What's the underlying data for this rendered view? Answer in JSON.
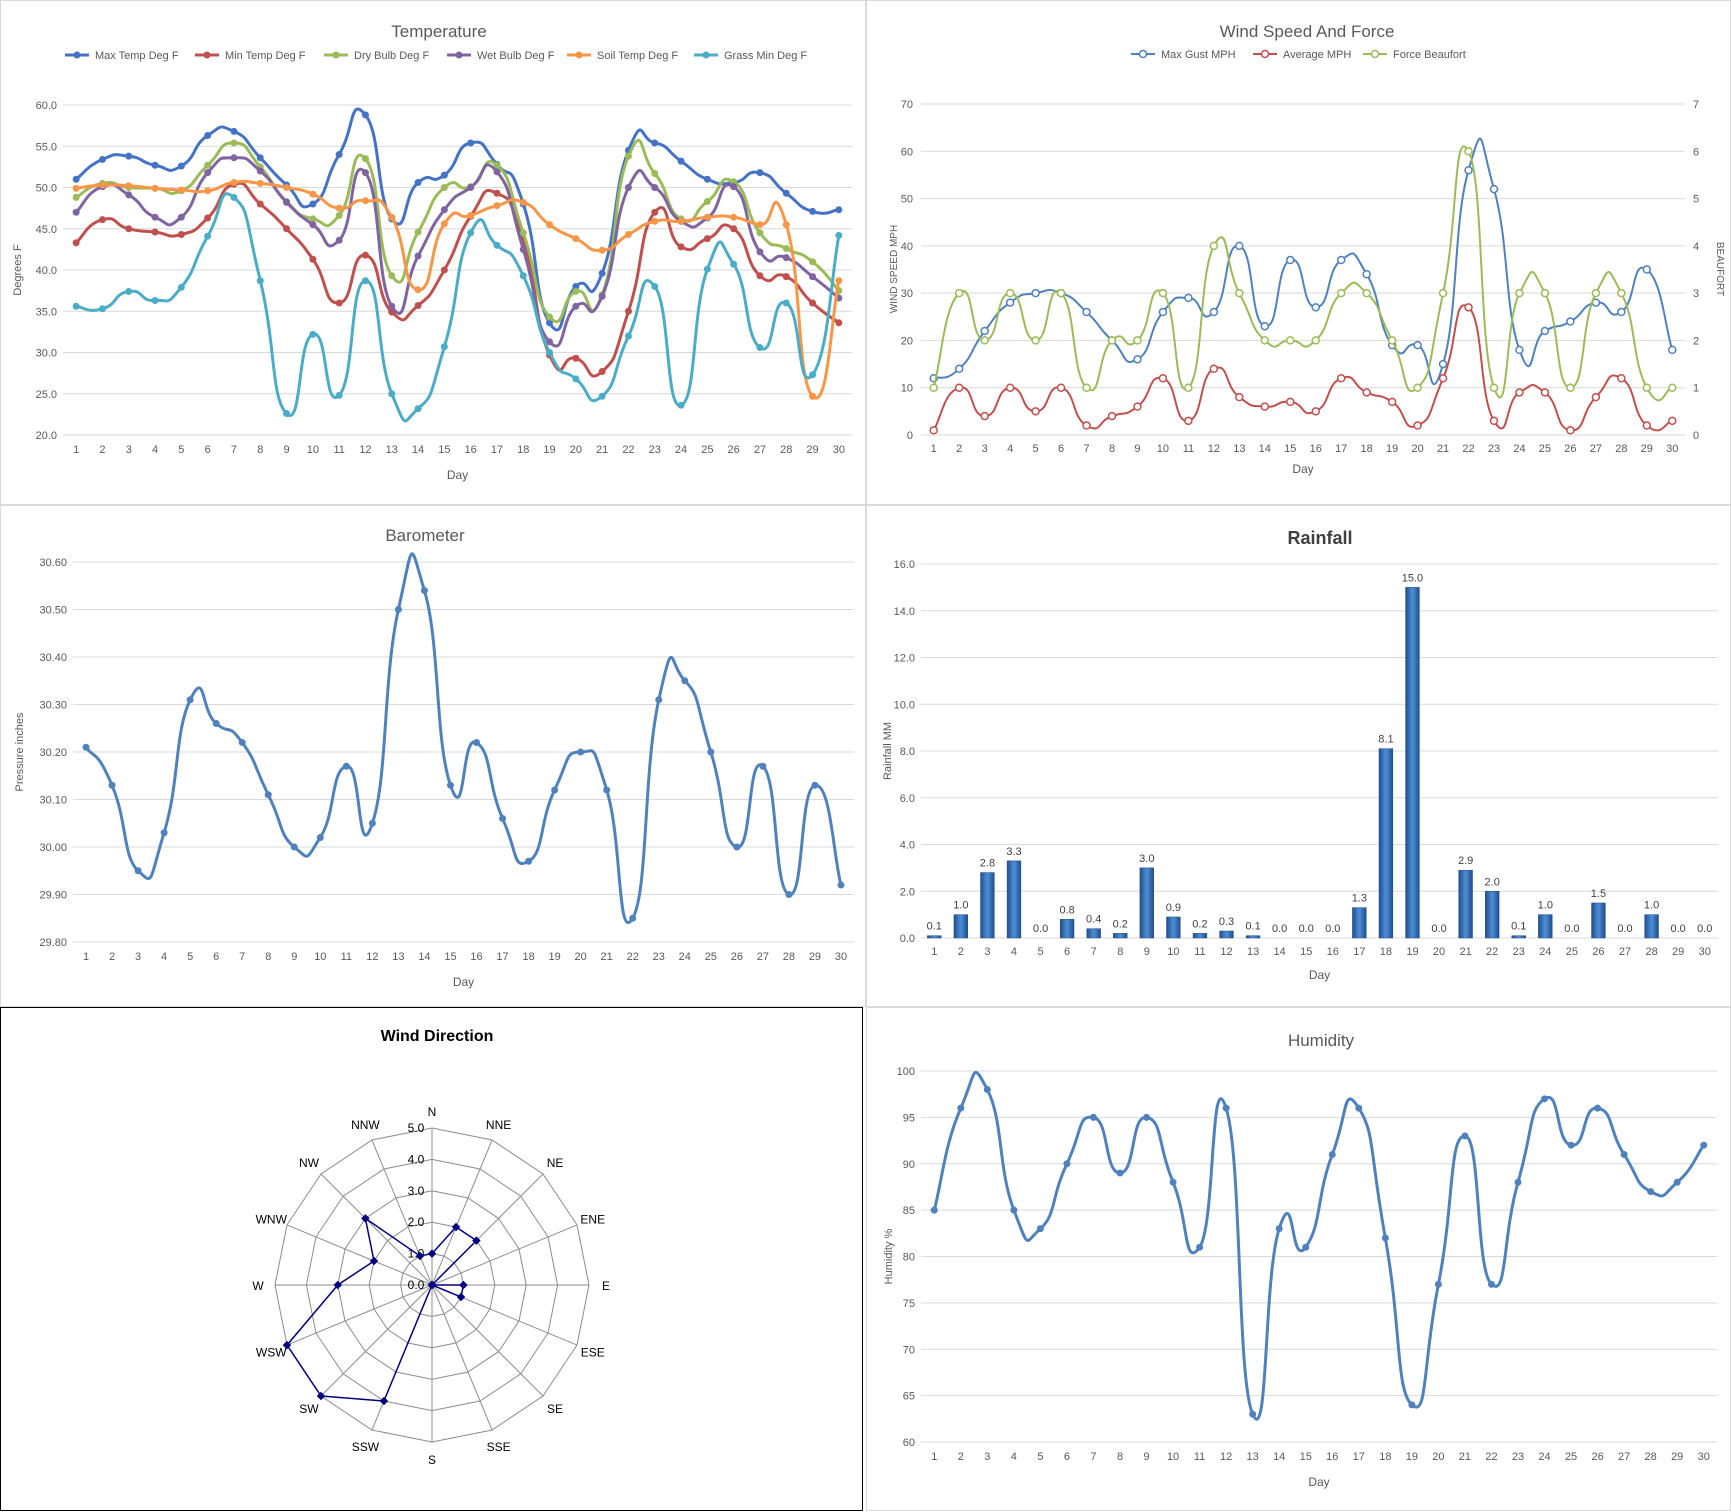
{
  "days": [
    1,
    2,
    3,
    4,
    5,
    6,
    7,
    8,
    9,
    10,
    11,
    12,
    13,
    14,
    15,
    16,
    17,
    18,
    19,
    20,
    21,
    22,
    23,
    24,
    25,
    26,
    27,
    28,
    29,
    30
  ],
  "temperature": {
    "title": "Temperature",
    "xlabel": "Day",
    "ylabel": "Degrees F",
    "yticks": [
      "20.0",
      "25.0",
      "30.0",
      "35.0",
      "40.0",
      "45.0",
      "50.0",
      "55.0",
      "60.0"
    ],
    "chart_data": {
      "type": "line",
      "ylim": [
        20,
        60
      ],
      "series": [
        {
          "name": "Max Temp Deg F",
          "color": "#4472c4",
          "values": [
            51,
            53.4,
            53.8,
            52.7,
            52.6,
            56.3,
            56.8,
            53.6,
            50.3,
            48,
            54,
            58.8,
            46.2,
            50.6,
            51.5,
            55.4,
            52.8,
            48,
            33.6,
            38,
            39.6,
            54.5,
            55.4,
            53.2,
            51,
            50.6,
            51.8,
            49.3,
            47.1,
            47.3
          ]
        },
        {
          "name": "Min Temp Deg F",
          "color": "#c0504d",
          "values": [
            43.3,
            46.1,
            45,
            44.6,
            44.3,
            46.3,
            50.4,
            48,
            45,
            41.3,
            36,
            41.8,
            34.9,
            35.7,
            40,
            46.5,
            49.3,
            43.4,
            29.7,
            29.3,
            27.7,
            35,
            47,
            42.8,
            43.8,
            45,
            39.3,
            39.2,
            36,
            33.6
          ]
        },
        {
          "name": "Dry Bulb Deg F",
          "color": "#9bbb59",
          "values": [
            48.8,
            50.5,
            50,
            49.9,
            49.6,
            52.7,
            55.4,
            52.5,
            48.3,
            46.2,
            46.6,
            53.5,
            39.3,
            44.6,
            50,
            50.1,
            52.7,
            44.5,
            34.3,
            37.4,
            37,
            53.8,
            51.7,
            46.2,
            48.3,
            50.7,
            44.5,
            42.6,
            41,
            37.5
          ]
        },
        {
          "name": "Wet Bulb Deg F",
          "color": "#8064a2",
          "values": [
            47,
            50.1,
            49.1,
            46.4,
            46.4,
            51.8,
            53.6,
            52,
            48.2,
            45.5,
            43.6,
            51.8,
            35.6,
            41.7,
            47.3,
            50,
            51.9,
            42.5,
            31.3,
            35.6,
            36.8,
            50,
            50,
            45.9,
            46.3,
            50.1,
            42.2,
            41.5,
            39.2,
            36.6
          ]
        },
        {
          "name": "Soil Temp Deg F",
          "color": "#f79646",
          "values": [
            49.9,
            50.3,
            50.2,
            49.9,
            49.7,
            49.6,
            50.6,
            50.5,
            50,
            49.2,
            47.5,
            48.4,
            46.4,
            37.6,
            45.6,
            46.6,
            47.8,
            48.2,
            45.5,
            43.8,
            42.4,
            44.3,
            45.9,
            45.9,
            46.4,
            46.4,
            45.5,
            45.5,
            24.7,
            38.7
          ]
        },
        {
          "name": "Grass Min Deg F",
          "color": "#4bacc6",
          "values": [
            35.6,
            35.3,
            37.4,
            36.3,
            37.9,
            44.1,
            48.8,
            38.7,
            22.6,
            32.2,
            24.8,
            38.7,
            25,
            23.2,
            30.7,
            44.5,
            43,
            39.3,
            30,
            26.8,
            24.7,
            32,
            38,
            23.6,
            40.1,
            40.7,
            30.6,
            36,
            27.3,
            44.2
          ]
        }
      ]
    }
  },
  "wind": {
    "title": "Wind Speed And Force",
    "xlabel": "Day",
    "ylabel": "WIND SPEED MPH",
    "y2label": "BEAUFORT",
    "yticks": [
      "0",
      "10",
      "20",
      "30",
      "40",
      "50",
      "60",
      "70"
    ],
    "y2ticks": [
      "0",
      "1",
      "2",
      "3",
      "4",
      "5",
      "6",
      "7"
    ],
    "chart_data": {
      "type": "line",
      "ylim": [
        0,
        70
      ],
      "y2lim": [
        0,
        7
      ],
      "series": [
        {
          "name": "Max Gust MPH",
          "color": "#4f81bd",
          "axis": "left",
          "values": [
            12,
            14,
            22,
            28,
            30,
            30,
            26,
            20,
            16,
            26,
            29,
            26,
            40,
            23,
            37,
            27,
            37,
            34,
            19,
            19,
            15,
            56,
            52,
            18,
            22,
            24,
            28,
            26,
            35,
            18
          ]
        },
        {
          "name": "Average MPH",
          "color": "#c0504d",
          "axis": "left",
          "values": [
            1,
            10,
            4,
            10,
            5,
            10,
            2,
            4,
            6,
            12,
            3,
            14,
            8,
            6,
            7,
            5,
            12,
            9,
            7,
            2,
            12,
            27,
            3,
            9,
            9,
            1,
            8,
            12,
            2,
            3
          ]
        },
        {
          "name": "Force Beaufort",
          "color": "#9bbb59",
          "axis": "right",
          "values": [
            1,
            3,
            2,
            3,
            2,
            3,
            1,
            2,
            2,
            3,
            1,
            4,
            3,
            2,
            2,
            2,
            3,
            3,
            2,
            1,
            3,
            6,
            1,
            3,
            3,
            1,
            3,
            3,
            1,
            1
          ]
        }
      ]
    }
  },
  "barometer": {
    "title": "Barometer",
    "xlabel": "Day",
    "ylabel": "Pressure inches",
    "yticks": [
      "29.80",
      "29.90",
      "30.00",
      "30.10",
      "30.20",
      "30.30",
      "30.40",
      "30.50",
      "30.60"
    ],
    "chart_data": {
      "type": "line",
      "ylim": [
        29.8,
        30.6
      ],
      "series": [
        {
          "name": "",
          "color": "#4f81bd",
          "values": [
            30.21,
            30.13,
            29.95,
            30.03,
            30.31,
            30.26,
            30.22,
            30.11,
            30.0,
            30.02,
            30.17,
            30.05,
            30.5,
            30.54,
            30.13,
            30.22,
            30.06,
            29.97,
            30.12,
            30.2,
            30.12,
            29.85,
            30.31,
            30.35,
            30.2,
            30.0,
            30.17,
            29.9,
            30.13,
            29.92
          ]
        }
      ]
    }
  },
  "rainfall": {
    "title": "Rainfall",
    "xlabel": "Day",
    "ylabel": "Rainfall MM",
    "yticks": [
      "0.0",
      "2.0",
      "4.0",
      "6.0",
      "8.0",
      "10.0",
      "12.0",
      "14.0",
      "16.0"
    ],
    "chart_data": {
      "type": "bar",
      "ylim": [
        0,
        16
      ],
      "series": [
        {
          "name": "",
          "color": "#2e6bb5",
          "values": [
            0.1,
            1.0,
            2.8,
            3.3,
            0.0,
            0.8,
            0.4,
            0.2,
            3.0,
            0.9,
            0.2,
            0.3,
            0.1,
            0.0,
            0.0,
            0.0,
            1.3,
            8.1,
            15.0,
            0.0,
            2.9,
            2.0,
            0.1,
            1.0,
            0.0,
            1.5,
            0.0,
            1.0,
            0.0,
            0.0
          ]
        }
      ],
      "labels": [
        "0.1",
        "1.0",
        "2.8",
        "3.3",
        "0.0",
        "0.8",
        "0.4",
        "0.2",
        "3.0",
        "0.9",
        "0.2",
        "0.3",
        "0.1",
        "0.0",
        "0.0",
        "0.0",
        "1.3",
        "8.1",
        "15.0",
        "0.0",
        "2.9",
        "2.0",
        "0.1",
        "1.0",
        "0.0",
        "1.5",
        "0.0",
        "1.0",
        "0.0",
        "0.0"
      ]
    }
  },
  "wind_direction": {
    "title": "Wind Direction",
    "ticks": [
      "0.0",
      "1.0",
      "2.0",
      "3.0",
      "4.0",
      "5.0"
    ],
    "chart_data": {
      "type": "radar",
      "rlim": [
        0,
        5
      ],
      "categories": [
        "N",
        "NNE",
        "NE",
        "ENE",
        "E",
        "ESE",
        "SE",
        "SSE",
        "S",
        "SSW",
        "SW",
        "WSW",
        "W",
        "WNW",
        "NW",
        "NNW"
      ],
      "series": [
        {
          "name": "",
          "color": "#000080",
          "values": [
            1,
            2,
            2,
            0,
            1,
            1,
            0,
            0,
            0,
            4,
            5,
            5,
            3,
            2,
            3,
            1
          ]
        }
      ]
    }
  },
  "humidity": {
    "title": "Humidity",
    "xlabel": "Day",
    "ylabel": "Humidity %",
    "yticks": [
      "60",
      "65",
      "70",
      "75",
      "80",
      "85",
      "90",
      "95",
      "100"
    ],
    "chart_data": {
      "type": "line",
      "ylim": [
        60,
        100
      ],
      "series": [
        {
          "name": "",
          "color": "#4f81bd",
          "values": [
            85,
            96,
            98,
            85,
            83,
            90,
            95,
            89,
            95,
            88,
            81,
            96,
            63,
            83,
            81,
            91,
            96,
            82,
            64,
            77,
            93,
            77,
            88,
            97,
            92,
            96,
            91,
            87,
            88,
            92
          ]
        }
      ]
    }
  }
}
